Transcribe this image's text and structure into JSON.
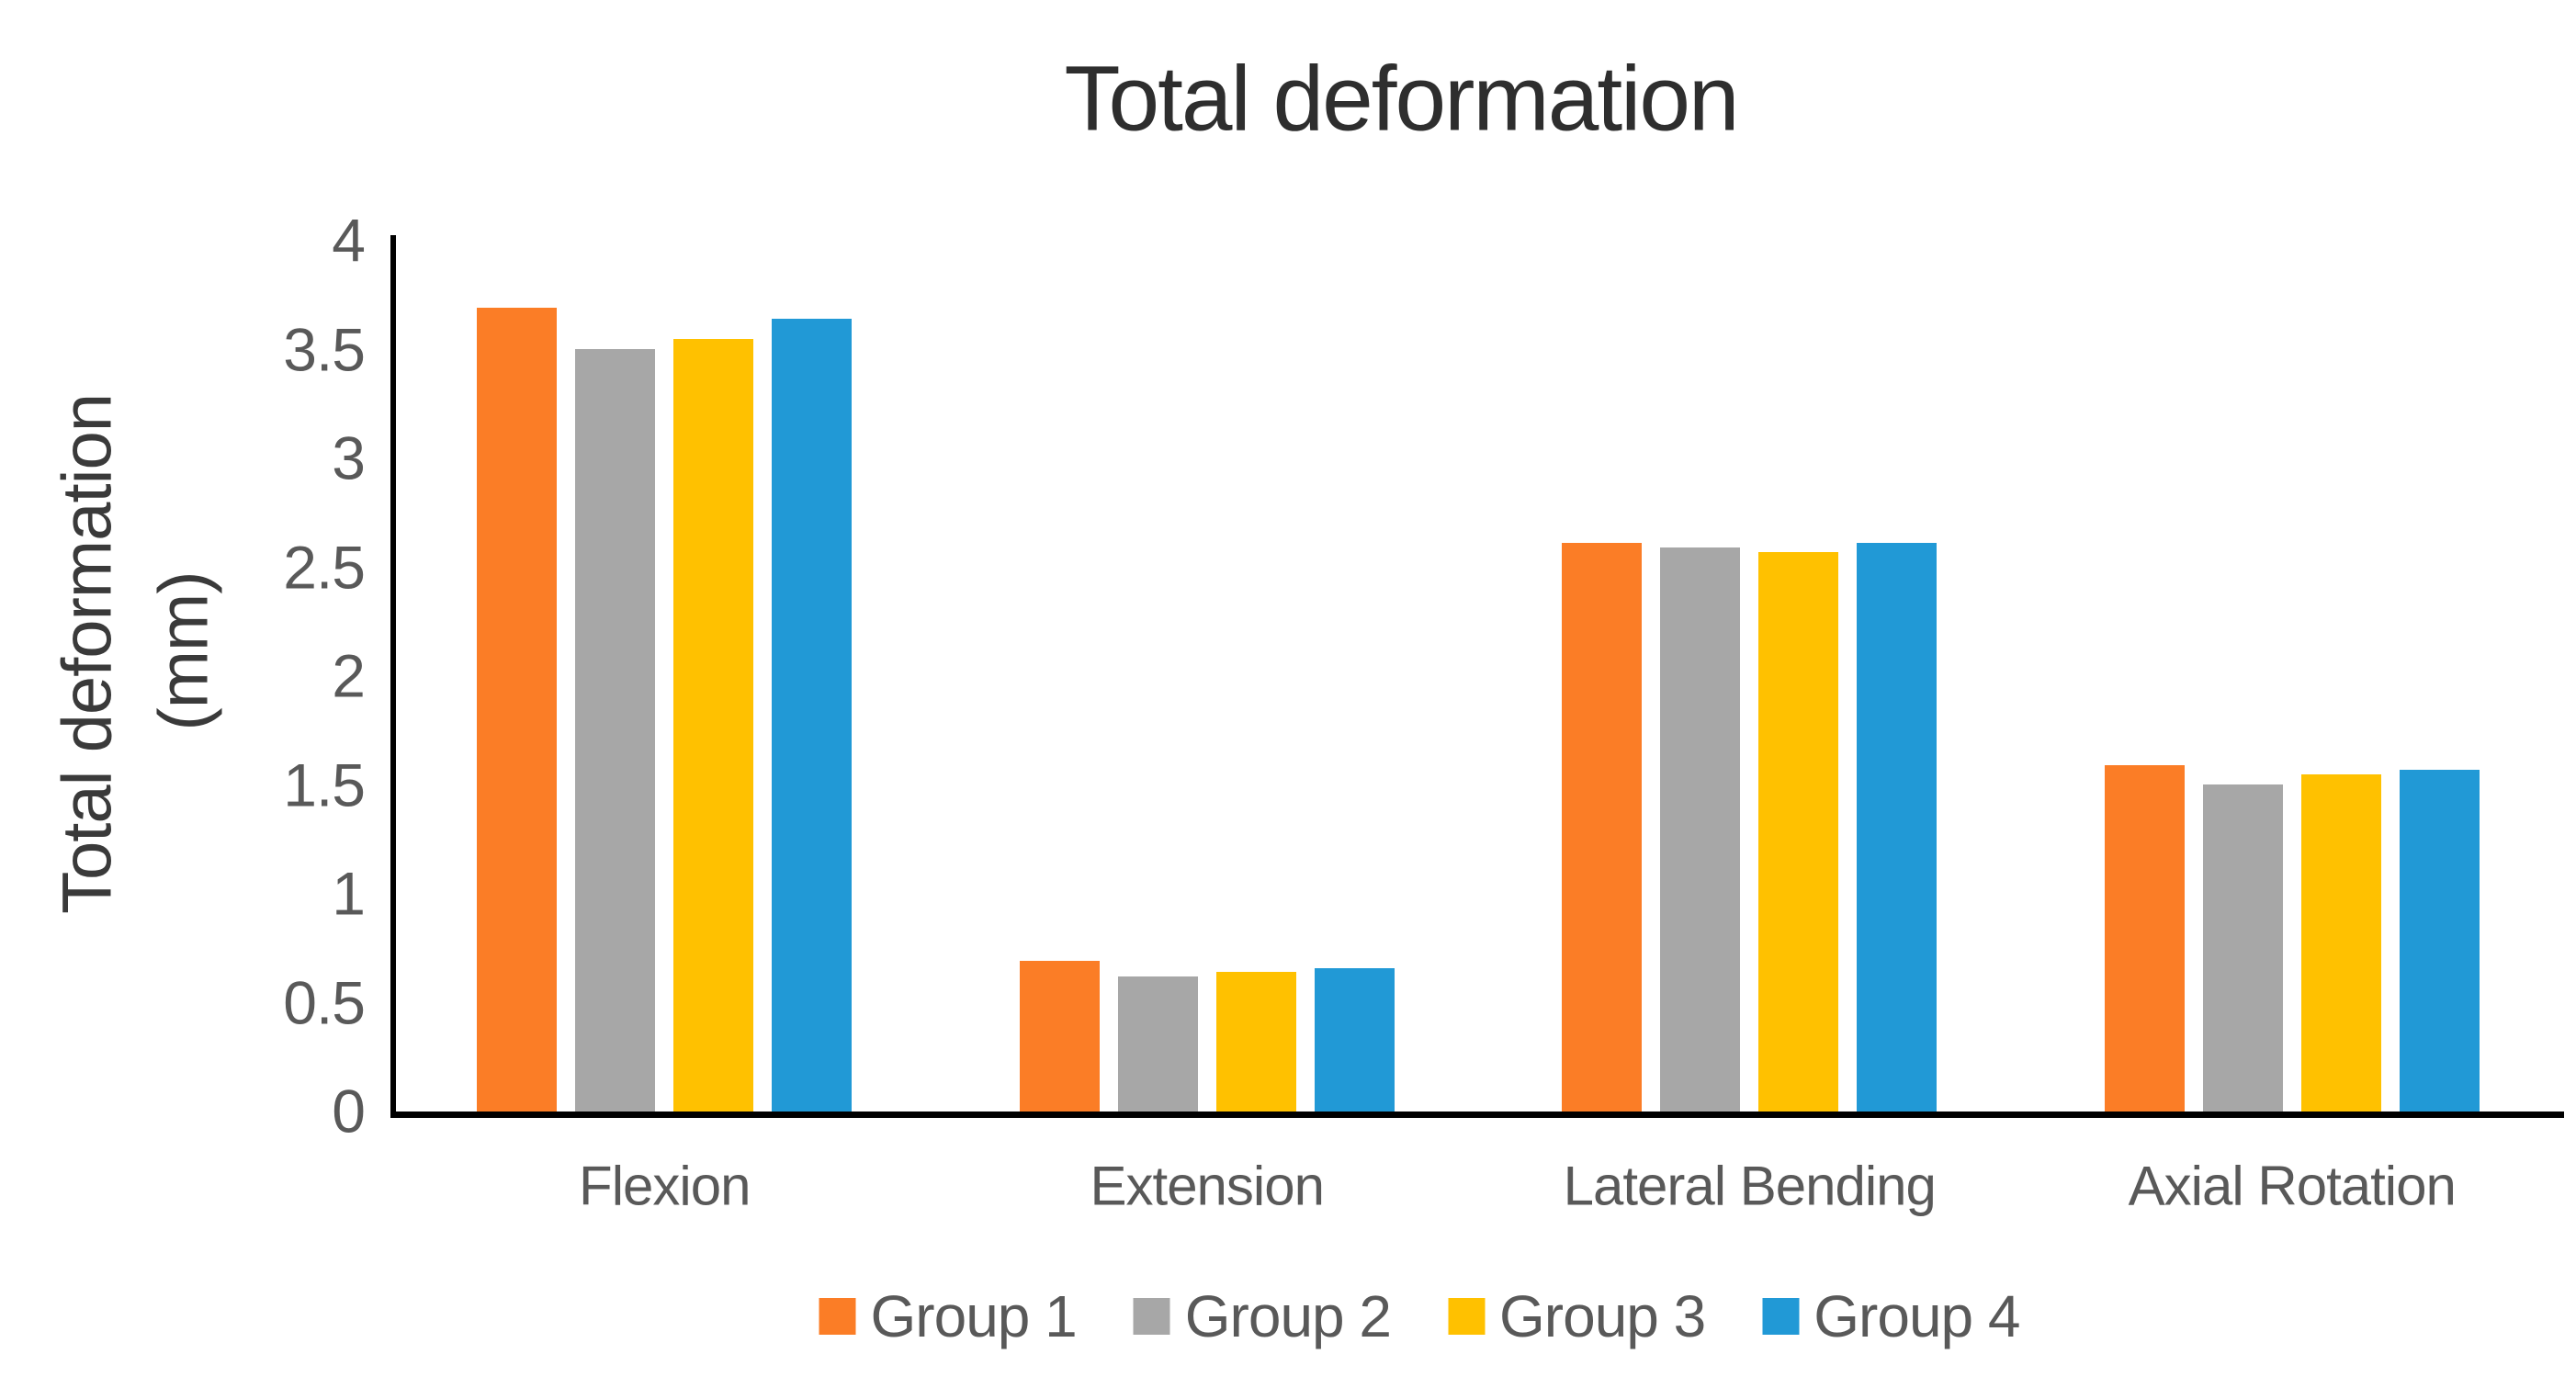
{
  "chart": {
    "title": "Total deformation",
    "y_axis_label_lines": [
      "Total deformation",
      "(mm)"
    ],
    "y_tick_labels": [
      "0",
      "0.5",
      "1",
      "1.5",
      "2",
      "2.5",
      "3",
      "3.5",
      "4"
    ]
  },
  "chart_data": {
    "type": "bar",
    "title": "Total deformation",
    "ylabel": "Total deformation (mm)",
    "xlabel": "",
    "categories": [
      "Flexion",
      "Extension",
      "Lateral Bending",
      "Axial Rotation"
    ],
    "series": [
      {
        "name": "Group 1",
        "color": "#FB7D26",
        "values": [
          3.69,
          0.69,
          2.61,
          1.59
        ]
      },
      {
        "name": "Group 2",
        "color": "#A7A7A7",
        "values": [
          3.5,
          0.62,
          2.59,
          1.5
        ]
      },
      {
        "name": "Group 3",
        "color": "#FFC100",
        "values": [
          3.55,
          0.64,
          2.57,
          1.55
        ]
      },
      {
        "name": "Group 4",
        "color": "#2199D6",
        "values": [
          3.64,
          0.66,
          2.61,
          1.57
        ]
      }
    ],
    "ylim": [
      0,
      4
    ],
    "ytick_step": 0.5,
    "grid": false,
    "legend_position": "bottom",
    "axis_color": "#000000",
    "label_color": "#595959",
    "title_color": "#2E2E2E"
  }
}
